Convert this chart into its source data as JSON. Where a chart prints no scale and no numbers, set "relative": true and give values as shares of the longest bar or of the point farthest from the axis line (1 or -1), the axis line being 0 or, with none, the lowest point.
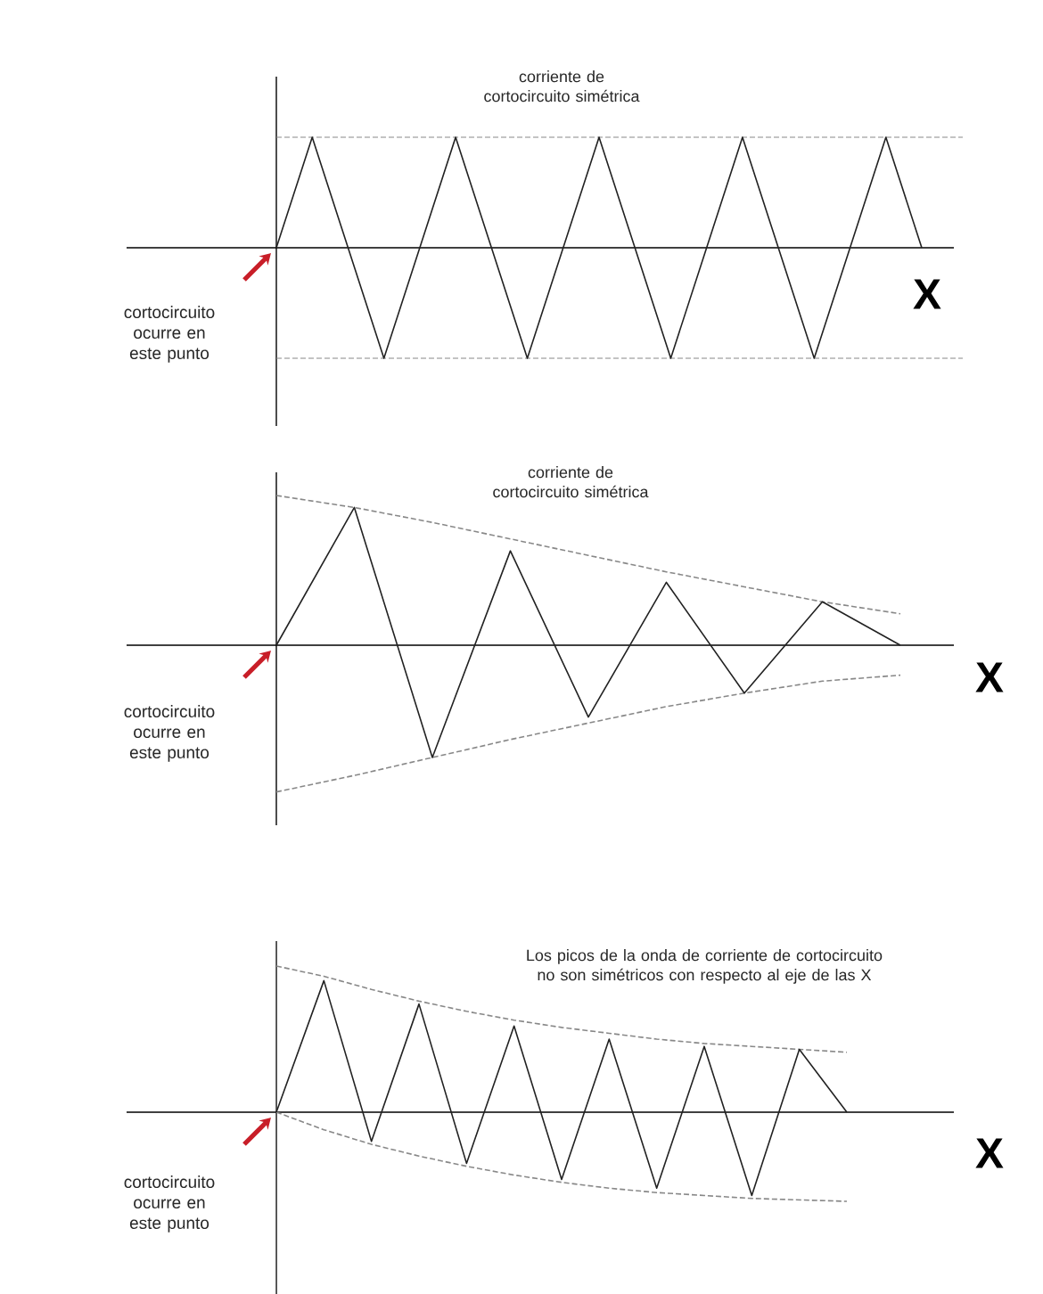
{
  "chart_data": [
    {
      "type": "line",
      "relative": true,
      "title": "corriente de cortocircuito simétrica",
      "xlabel": "X",
      "annotations": [
        "cortocircuito ocurre en este punto"
      ],
      "categories": [
        null,
        null,
        null,
        null,
        null,
        null,
        null,
        null,
        null,
        null,
        null,
        null,
        null,
        null,
        null,
        null,
        null,
        null,
        null
      ],
      "series": [
        {
          "color": "#222222",
          "values": [
            0,
            1,
            0,
            -1,
            0,
            1,
            0,
            -1,
            0,
            1,
            0,
            -1,
            0,
            1,
            0,
            -1,
            0,
            1,
            0
          ]
        }
      ],
      "ref_lines": [
        {
          "axis": "y",
          "value": 1,
          "color": "#888888",
          "line_style": "dashed"
        },
        {
          "axis": "y",
          "value": -1,
          "color": "#888888",
          "line_style": "dashed"
        }
      ]
    },
    {
      "type": "line",
      "relative": true,
      "title": "corriente de cortocircuito simétrica",
      "xlabel": "X",
      "annotations": [
        "cortocircuito ocurre en este punto"
      ],
      "categories": [
        null,
        null,
        null,
        null,
        null,
        null,
        null,
        null,
        null
      ],
      "series": [
        {
          "color": "#222222",
          "values": [
            0,
            0.92,
            -0.75,
            0.63,
            -0.48,
            0.42,
            -0.32,
            0.29,
            0
          ]
        },
        {
          "color": "#888888",
          "line_style": "dashed",
          "values": [
            1,
            0.92,
            0.82,
            0.71,
            0.6,
            0.49,
            0.39,
            0.29,
            0.21
          ]
        },
        {
          "color": "#888888",
          "line_style": "dashed",
          "values": [
            -0.98,
            -0.87,
            -0.75,
            -0.63,
            -0.52,
            -0.41,
            -0.32,
            -0.24,
            -0.2
          ]
        }
      ]
    },
    {
      "type": "line",
      "relative": true,
      "title": "Los picos de la onda de corriente de cortocircuito no son simétricos con respecto al eje de las X",
      "xlabel": "X",
      "annotations": [
        "cortocircuito ocurre en este punto"
      ],
      "categories": [
        null,
        null,
        null,
        null,
        null,
        null,
        null,
        null,
        null,
        null,
        null,
        null,
        null
      ],
      "series": [
        {
          "color": "#222222",
          "values": [
            0,
            0.9,
            -0.2,
            0.74,
            -0.35,
            0.59,
            -0.46,
            0.5,
            -0.52,
            0.45,
            -0.57,
            0.43,
            0
          ]
        },
        {
          "color": "#888888",
          "line_style": "dashed",
          "values": [
            1,
            0.93,
            0.84,
            0.76,
            0.69,
            0.63,
            0.58,
            0.54,
            0.5,
            0.47,
            0.45,
            0.43,
            0.41
          ]
        },
        {
          "color": "#888888",
          "line_style": "dashed",
          "values": [
            0,
            -0.12,
            -0.22,
            -0.3,
            -0.37,
            -0.43,
            -0.48,
            -0.52,
            -0.55,
            -0.57,
            -0.59,
            -0.6,
            -0.61
          ]
        }
      ]
    }
  ]
}
